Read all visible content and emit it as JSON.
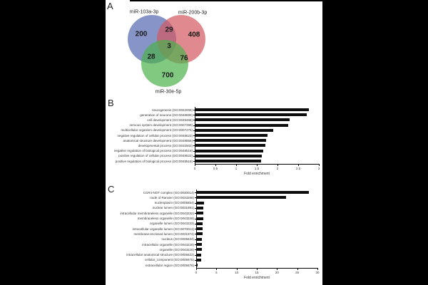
{
  "panels": {
    "a_letter": "A",
    "b_letter": "B",
    "c_letter": "C"
  },
  "venn": {
    "labels": [
      "miR-103a-3p",
      "miR-200b-3p",
      "miR-30e-5p"
    ],
    "colors": [
      "#5466B0",
      "#D3585F",
      "#4CB04C"
    ],
    "counts": {
      "a_only": "200",
      "b_only": "408",
      "c_only": "700",
      "ab": "29",
      "ac": "28",
      "bc": "76",
      "abc": "3"
    }
  },
  "chart_data": [
    {
      "panel": "B",
      "type": "bar",
      "orientation": "horizontal",
      "xlabel": "Fold enrichment",
      "xlim": [
        0,
        3
      ],
      "xticks": [
        "0",
        "0.5",
        "1",
        "1.5",
        "2",
        "2.5",
        "3"
      ],
      "grid": false,
      "bar_color": "#0d0d0d",
      "categories": [
        "neurogenesis (GO:0022008)",
        "generation of neurons (GO:0048699)",
        "cell development (GO:0048468)",
        "nervous system development (GO:0007399)",
        "multicellular organism development (GO:0007275)",
        "negative regulation of cellular process (GO:0048523)",
        "anatomical structure development (GO:0048856)",
        "developmental process (GO:0032502)",
        "negative regulation of biological process (GO:0048519)",
        "positive regulation of cellular process (GO:0048522)",
        "positive regulation of biological process (GO:0048518)"
      ],
      "values": [
        2.75,
        2.7,
        2.3,
        2.25,
        1.9,
        1.75,
        1.72,
        1.7,
        1.65,
        1.62,
        1.6
      ]
    },
    {
      "panel": "C",
      "type": "bar",
      "orientation": "horizontal",
      "xlabel": "Fold enrichment",
      "xlim": [
        0,
        30
      ],
      "xticks": [
        "0",
        "5",
        "10",
        "15",
        "20",
        "25",
        "30"
      ],
      "grid": false,
      "bar_color": "#0d0d0d",
      "categories": [
        "CCR4-NOT complex (GO:0030014)",
        "node of Ranvier (GO:0033268)",
        "nucleoplasm (GO:0005654)",
        "nuclear lumen (GO:0031981)",
        "intracellular membraneless organelle (GO:0043232)",
        "membraneless organelle (GO:0043228)",
        "organelle lumen (GO:0043233)",
        "intracellular organelle lumen (GO:0070013)",
        "membrane-enclosed lumen (GO:0031974)",
        "nucleus (GO:0005634)",
        "intracellular organelle (GO:0043229)",
        "organelle (GO:0043226)",
        "intracellular anatomical structure (GO:0005622)",
        "cellular_component (GO:0005575)",
        "extracellular region (GO:0005576)"
      ],
      "values": [
        27.8,
        22.3,
        1.9,
        1.8,
        1.7,
        1.7,
        1.6,
        1.6,
        1.55,
        1.45,
        1.4,
        1.35,
        1.3,
        1.25,
        0.4
      ]
    }
  ]
}
